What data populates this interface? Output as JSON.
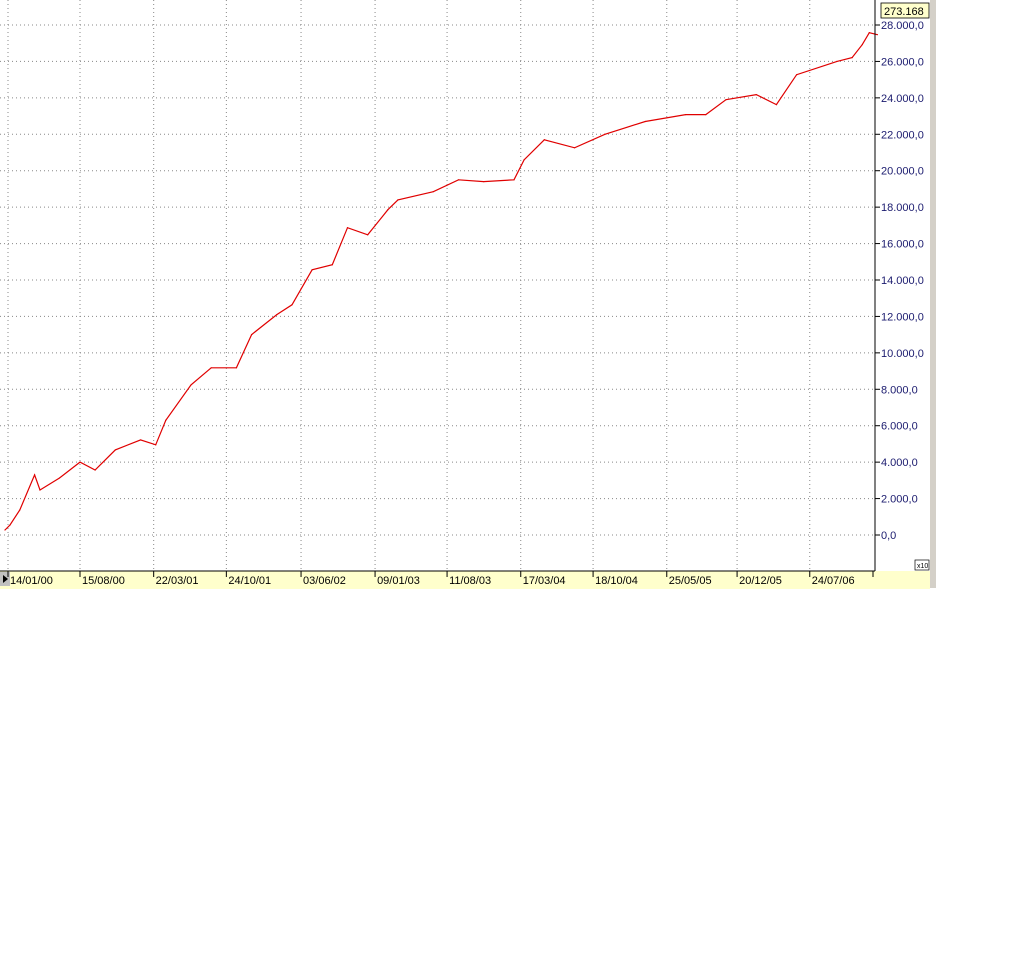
{
  "chart_data": {
    "type": "line",
    "title": "",
    "xlabel": "",
    "ylabel": "",
    "grid": true,
    "y_axis_position": "right",
    "ylim": [
      0,
      28000
    ],
    "y_ticks": [
      0,
      2000,
      4000,
      6000,
      8000,
      10000,
      12000,
      14000,
      16000,
      18000,
      20000,
      22000,
      24000,
      26000,
      28000
    ],
    "y_tick_labels": [
      "0,0",
      "2.000,0",
      "4.000,0",
      "6.000,0",
      "8.000,0",
      "10.000,0",
      "12.000,0",
      "14.000,0",
      "16.000,0",
      "18.000,0",
      "20.000,0",
      "22.000,0",
      "24.000,0",
      "26.000,0",
      "28.000,0"
    ],
    "x_tick_dates": [
      "2000-01-14",
      "2000-08-15",
      "2001-03-22",
      "2001-10-24",
      "2002-06-03",
      "2003-01-09",
      "2003-08-11",
      "2004-03-17",
      "2004-10-18",
      "2005-05-25",
      "2005-12-20",
      "2006-07-24"
    ],
    "x_tick_labels": [
      "14/01/00",
      "15/08/00",
      "22/03/01",
      "24/10/01",
      "03/06/02",
      "09/01/03",
      "11/08/03",
      "17/03/04",
      "18/10/04",
      "25/05/05",
      "20/12/05",
      "24/07/06"
    ],
    "last_value_label": "273.168",
    "scale_label": "x10",
    "series": [
      {
        "color": "#e00000",
        "x": [
          "2000-01-05",
          "2000-01-20",
          "2000-02-18",
          "2000-04-02",
          "2000-04-18",
          "2000-06-15",
          "2000-08-15",
          "2000-09-29",
          "2000-11-28",
          "2001-02-11",
          "2001-03-28",
          "2001-04-27",
          "2001-07-11",
          "2001-09-09",
          "2001-11-23",
          "2002-01-07",
          "2002-03-23",
          "2002-05-07",
          "2002-07-06",
          "2002-09-04",
          "2002-10-19",
          "2002-12-18",
          "2003-02-16",
          "2003-03-18",
          "2003-07-01",
          "2003-09-14",
          "2003-11-28",
          "2004-02-26",
          "2004-03-27",
          "2004-05-26",
          "2004-08-24",
          "2004-11-22",
          "2005-03-22",
          "2005-07-20",
          "2005-09-18",
          "2005-11-17",
          "2006-02-15",
          "2006-04-16",
          "2006-06-15",
          "2006-10-13",
          "2006-11-27",
          "2006-12-27",
          "2007-01-17",
          "2007-02-10"
        ],
        "y": [
          275,
          550,
          1370,
          3300,
          2470,
          3130,
          4000,
          3570,
          4670,
          5220,
          4950,
          6300,
          8240,
          9180,
          9180,
          11000,
          12100,
          12640,
          14560,
          14840,
          16870,
          16480,
          17860,
          18400,
          18850,
          19500,
          19400,
          19500,
          20600,
          21700,
          21260,
          22000,
          22700,
          23080,
          23080,
          23900,
          24180,
          23630,
          25270,
          26000,
          26210,
          26920,
          27580,
          27470
        ]
      }
    ]
  }
}
